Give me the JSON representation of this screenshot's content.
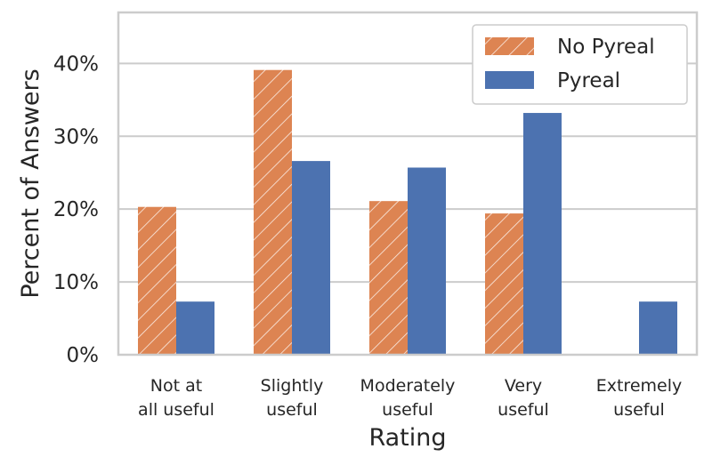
{
  "chart_data": {
    "type": "bar",
    "title": "",
    "xlabel": "Rating",
    "ylabel": "Percent of Answers",
    "categories": [
      [
        "Not at",
        "all useful"
      ],
      [
        "Slightly",
        "useful"
      ],
      [
        "Moderately",
        "useful"
      ],
      [
        "Very",
        "useful"
      ],
      [
        "Extremely",
        "useful"
      ]
    ],
    "series": [
      {
        "name": "No Pyreal",
        "values": [
          20.3,
          39.1,
          21.1,
          19.4,
          0
        ],
        "color": "#dd8452",
        "hatch": "diagonal"
      },
      {
        "name": "Pyreal",
        "values": [
          7.3,
          26.6,
          25.7,
          33.2,
          7.3
        ],
        "color": "#4c72b0",
        "hatch": "none"
      }
    ],
    "ylim": [
      0,
      47
    ],
    "yticks": [
      0,
      10,
      20,
      30,
      40
    ],
    "ytick_format": "%",
    "grid": true,
    "legend_position": "top-right",
    "spine_color": "#cccccc",
    "grid_color": "#cccccc"
  }
}
